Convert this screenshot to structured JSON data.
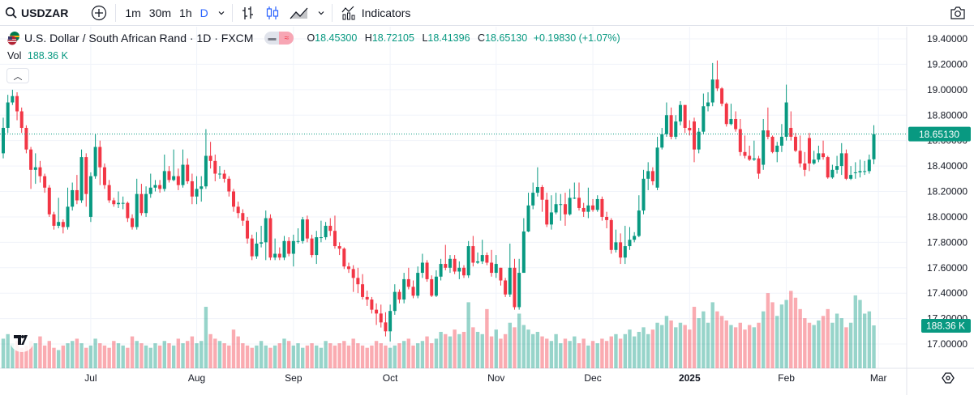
{
  "toolbar": {
    "symbol": "USDZAR",
    "intervals": [
      "1m",
      "30m",
      "1h",
      "D"
    ],
    "active_interval": "D",
    "indicators_label": "Indicators"
  },
  "legend": {
    "title": "U.S. Dollar / South African Rand · 1D · FXCM",
    "open_label": "O",
    "open": "18.45300",
    "high_label": "H",
    "high": "18.72105",
    "low_label": "L",
    "low": "18.41396",
    "close_label": "C",
    "close": "18.65130",
    "change": "+0.19830 (+1.07%)",
    "vol_label": "Vol",
    "vol": "188.36 K"
  },
  "colors": {
    "up": "#089981",
    "down": "#F23645",
    "accent": "#2962FF"
  },
  "price_axis": {
    "ticks": [
      "19.40000",
      "19.20000",
      "19.00000",
      "18.80000",
      "18.60000",
      "18.40000",
      "18.20000",
      "18.00000",
      "17.80000",
      "17.60000",
      "17.40000",
      "17.20000",
      "17.00000"
    ],
    "last_price_label": "18.65130",
    "last_volume_label": "188.36 K"
  },
  "time_axis": [
    {
      "label": "Jul",
      "index": 19
    },
    {
      "label": "Aug",
      "index": 42
    },
    {
      "label": "Sep",
      "index": 63
    },
    {
      "label": "Oct",
      "index": 84
    },
    {
      "label": "Nov",
      "index": 107
    },
    {
      "label": "Dec",
      "index": 128
    },
    {
      "label": "2025",
      "index": 149,
      "bold": true
    },
    {
      "label": "Feb",
      "index": 170
    },
    {
      "label": "Mar",
      "index": 190
    }
  ],
  "chart_data": {
    "type": "candlestick",
    "symbol": "USDZAR",
    "interval": "1D",
    "ylim": [
      16.8,
      19.5
    ],
    "last_price": 18.6513,
    "volume_unit": "K",
    "candles_ohlcv": [
      [
        18.5,
        18.78,
        18.46,
        18.7,
        130
      ],
      [
        18.7,
        18.96,
        18.66,
        18.9,
        150
      ],
      [
        18.9,
        19.0,
        18.88,
        18.95,
        110
      ],
      [
        18.95,
        18.98,
        18.76,
        18.83,
        120
      ],
      [
        18.83,
        18.86,
        18.66,
        18.7,
        90
      ],
      [
        18.7,
        18.72,
        18.5,
        18.53,
        100
      ],
      [
        18.53,
        18.55,
        18.22,
        18.37,
        120
      ],
      [
        18.37,
        18.5,
        18.26,
        18.39,
        110
      ],
      [
        18.39,
        18.44,
        18.27,
        18.32,
        140
      ],
      [
        18.32,
        18.34,
        18.19,
        18.23,
        100
      ],
      [
        18.23,
        18.25,
        18.0,
        18.02,
        120
      ],
      [
        18.02,
        18.04,
        17.9,
        17.93,
        90
      ],
      [
        17.93,
        18.15,
        17.91,
        17.96,
        80
      ],
      [
        17.96,
        17.98,
        17.87,
        17.92,
        100
      ],
      [
        17.92,
        18.23,
        17.9,
        18.08,
        110
      ],
      [
        18.08,
        18.27,
        18.05,
        18.21,
        120
      ],
      [
        18.21,
        18.33,
        18.1,
        18.13,
        130
      ],
      [
        18.13,
        18.53,
        18.11,
        18.47,
        110
      ],
      [
        18.47,
        18.5,
        18.08,
        18.18,
        90
      ],
      [
        18.0,
        18.35,
        17.96,
        18.32,
        100
      ],
      [
        18.32,
        18.65,
        18.3,
        18.55,
        130
      ],
      [
        18.55,
        18.6,
        18.25,
        18.39,
        110
      ],
      [
        18.39,
        18.42,
        18.22,
        18.25,
        100
      ],
      [
        18.25,
        18.29,
        18.11,
        18.13,
        90
      ],
      [
        18.13,
        18.15,
        18.08,
        18.1,
        120
      ],
      [
        18.1,
        18.2,
        18.07,
        18.11,
        110
      ],
      [
        18.11,
        18.16,
        18.06,
        18.11,
        100
      ],
      [
        18.11,
        18.12,
        17.96,
        17.99,
        90
      ],
      [
        17.99,
        18.02,
        17.9,
        17.92,
        140
      ],
      [
        17.92,
        18.3,
        17.9,
        18.18,
        120
      ],
      [
        18.18,
        18.26,
        18.01,
        18.03,
        110
      ],
      [
        18.03,
        18.24,
        18.0,
        18.18,
        100
      ],
      [
        18.18,
        18.34,
        18.15,
        18.23,
        90
      ],
      [
        18.23,
        18.29,
        18.2,
        18.25,
        110
      ],
      [
        18.25,
        18.29,
        18.19,
        18.22,
        100
      ],
      [
        18.22,
        18.49,
        18.2,
        18.36,
        120
      ],
      [
        18.36,
        18.4,
        18.27,
        18.29,
        110
      ],
      [
        18.29,
        18.53,
        18.28,
        18.32,
        100
      ],
      [
        18.32,
        18.38,
        18.21,
        18.25,
        130
      ],
      [
        18.25,
        18.53,
        18.23,
        18.41,
        110
      ],
      [
        18.41,
        18.46,
        18.26,
        18.28,
        120
      ],
      [
        18.28,
        18.34,
        18.1,
        18.16,
        140
      ],
      [
        18.16,
        18.32,
        18.1,
        18.22,
        110
      ],
      [
        18.22,
        18.32,
        18.12,
        18.24,
        120
      ],
      [
        18.24,
        18.69,
        18.22,
        18.48,
        270
      ],
      [
        18.48,
        18.59,
        18.38,
        18.44,
        150
      ],
      [
        18.44,
        18.49,
        18.28,
        18.34,
        130
      ],
      [
        18.34,
        18.4,
        18.3,
        18.34,
        120
      ],
      [
        18.34,
        18.37,
        18.27,
        18.3,
        110
      ],
      [
        18.3,
        18.32,
        18.16,
        18.2,
        100
      ],
      [
        18.2,
        18.22,
        18.04,
        18.08,
        170
      ],
      [
        18.08,
        18.12,
        17.99,
        18.03,
        140
      ],
      [
        18.03,
        18.06,
        17.93,
        17.97,
        110
      ],
      [
        17.97,
        18.0,
        17.79,
        17.83,
        100
      ],
      [
        17.83,
        17.86,
        17.66,
        17.69,
        90
      ],
      [
        17.69,
        17.88,
        17.67,
        17.79,
        100
      ],
      [
        17.79,
        17.93,
        17.76,
        17.8,
        120
      ],
      [
        17.8,
        18.05,
        17.66,
        17.99,
        100
      ],
      [
        17.99,
        18.02,
        17.66,
        17.68,
        90
      ],
      [
        17.68,
        17.83,
        17.66,
        17.71,
        100
      ],
      [
        17.71,
        17.76,
        17.66,
        17.68,
        110
      ],
      [
        17.68,
        17.85,
        17.66,
        17.81,
        130
      ],
      [
        17.81,
        17.84,
        17.69,
        17.71,
        120
      ],
      [
        17.71,
        17.86,
        17.61,
        17.81,
        100
      ],
      [
        17.81,
        17.91,
        17.79,
        17.81,
        110
      ],
      [
        17.81,
        18.0,
        17.79,
        17.98,
        90
      ],
      [
        17.98,
        18.01,
        17.8,
        17.83,
        100
      ],
      [
        17.83,
        17.86,
        17.68,
        17.7,
        110
      ],
      [
        17.7,
        17.89,
        17.63,
        17.84,
        100
      ],
      [
        17.84,
        17.97,
        17.8,
        17.84,
        90
      ],
      [
        17.84,
        17.96,
        17.82,
        17.93,
        120
      ],
      [
        17.93,
        17.99,
        17.85,
        17.89,
        110
      ],
      [
        17.89,
        18.01,
        17.75,
        17.77,
        100
      ],
      [
        17.77,
        17.8,
        17.7,
        17.75,
        110
      ],
      [
        17.75,
        17.76,
        17.59,
        17.61,
        120
      ],
      [
        17.61,
        17.64,
        17.56,
        17.59,
        100
      ],
      [
        17.59,
        17.62,
        17.41,
        17.52,
        130
      ],
      [
        17.52,
        17.6,
        17.4,
        17.47,
        110
      ],
      [
        17.47,
        17.55,
        17.35,
        17.37,
        100
      ],
      [
        17.37,
        17.42,
        17.3,
        17.35,
        90
      ],
      [
        17.35,
        17.37,
        17.24,
        17.27,
        100
      ],
      [
        17.27,
        17.32,
        17.15,
        17.24,
        120
      ],
      [
        17.24,
        17.31,
        17.13,
        17.17,
        110
      ],
      [
        17.17,
        17.25,
        17.06,
        17.1,
        100
      ],
      [
        17.1,
        17.31,
        17.02,
        17.26,
        90
      ],
      [
        17.26,
        17.47,
        17.23,
        17.41,
        100
      ],
      [
        17.41,
        17.43,
        17.32,
        17.35,
        110
      ],
      [
        17.35,
        17.56,
        17.32,
        17.51,
        120
      ],
      [
        17.51,
        17.6,
        17.43,
        17.45,
        130
      ],
      [
        17.45,
        17.5,
        17.36,
        17.38,
        100
      ],
      [
        17.38,
        17.61,
        17.36,
        17.56,
        110
      ],
      [
        17.56,
        17.71,
        17.52,
        17.64,
        120
      ],
      [
        17.64,
        17.66,
        17.49,
        17.51,
        140
      ],
      [
        17.51,
        17.54,
        17.37,
        17.38,
        110
      ],
      [
        17.38,
        17.58,
        17.37,
        17.53,
        130
      ],
      [
        17.53,
        17.67,
        17.5,
        17.63,
        160
      ],
      [
        17.63,
        17.78,
        17.58,
        17.6,
        150
      ],
      [
        17.6,
        17.7,
        17.56,
        17.67,
        140
      ],
      [
        17.67,
        17.7,
        17.55,
        17.57,
        170
      ],
      [
        17.57,
        17.65,
        17.51,
        17.6,
        150
      ],
      [
        17.6,
        17.62,
        17.52,
        17.54,
        160
      ],
      [
        17.54,
        17.81,
        17.52,
        17.77,
        290
      ],
      [
        17.77,
        17.85,
        17.61,
        17.64,
        180
      ],
      [
        17.64,
        17.72,
        17.63,
        17.65,
        160
      ],
      [
        17.65,
        17.82,
        17.63,
        17.7,
        150
      ],
      [
        17.7,
        17.72,
        17.62,
        17.64,
        260
      ],
      [
        17.64,
        17.74,
        17.53,
        17.56,
        140
      ],
      [
        17.56,
        17.7,
        17.52,
        17.63,
        170
      ],
      [
        17.6,
        17.6,
        17.46,
        17.5,
        130
      ],
      [
        17.5,
        17.52,
        17.37,
        17.39,
        150
      ],
      [
        17.39,
        17.79,
        17.37,
        17.6,
        200
      ],
      [
        17.6,
        17.67,
        17.27,
        17.29,
        180
      ],
      [
        17.29,
        17.67,
        17.27,
        17.56,
        240
      ],
      [
        17.56,
        17.99,
        17.57,
        17.885,
        190
      ],
      [
        17.885,
        18.19,
        17.88,
        18.09,
        170
      ],
      [
        18.09,
        18.27,
        18.06,
        18.19,
        150
      ],
      [
        18.19,
        18.39,
        18.16,
        18.235,
        160
      ],
      [
        18.235,
        18.25,
        18.04,
        18.135,
        140
      ],
      [
        18.135,
        18.19,
        17.92,
        17.94,
        130
      ],
      [
        17.94,
        18.17,
        17.9,
        18.035,
        120
      ],
      [
        18.035,
        18.19,
        18.02,
        18.1,
        150
      ],
      [
        18.1,
        18.18,
        17.97,
        18.1,
        110
      ],
      [
        18.1,
        18.19,
        17.93,
        18.02,
        130
      ],
      [
        18.02,
        18.22,
        18.01,
        18.15,
        120
      ],
      [
        18.15,
        18.27,
        18.14,
        18.15,
        140
      ],
      [
        18.15,
        18.27,
        18.05,
        18.07,
        110
      ],
      [
        18.07,
        18.11,
        18.0,
        18.04,
        130
      ],
      [
        18.04,
        18.23,
        17.99,
        18.09,
        100
      ],
      [
        18.09,
        18.14,
        18.04,
        18.055,
        120
      ],
      [
        18.055,
        18.17,
        18.04,
        18.14,
        110
      ],
      [
        18.14,
        18.16,
        17.97,
        18.0,
        130
      ],
      [
        18.0,
        18.04,
        17.91,
        17.975,
        120
      ],
      [
        17.975,
        17.99,
        17.71,
        17.74,
        140
      ],
      [
        17.74,
        17.9,
        17.72,
        17.8,
        150
      ],
      [
        17.8,
        17.87,
        17.63,
        17.68,
        130
      ],
      [
        17.68,
        17.93,
        17.63,
        17.77,
        150
      ],
      [
        17.77,
        17.92,
        17.74,
        17.82,
        170
      ],
      [
        17.82,
        17.88,
        17.8,
        17.85,
        140
      ],
      [
        17.85,
        18.17,
        17.84,
        18.05,
        160
      ],
      [
        18.05,
        18.37,
        18.02,
        18.3,
        180
      ],
      [
        18.3,
        18.43,
        18.21,
        18.36,
        150
      ],
      [
        18.36,
        18.39,
        18.25,
        18.28,
        170
      ],
      [
        18.23,
        18.63,
        18.21,
        18.545,
        200
      ],
      [
        18.545,
        18.7,
        18.53,
        18.65,
        190
      ],
      [
        18.65,
        18.9,
        18.63,
        18.8,
        230
      ],
      [
        18.8,
        18.86,
        18.61,
        18.63,
        210
      ],
      [
        18.63,
        18.8,
        18.61,
        18.75,
        180
      ],
      [
        18.75,
        18.91,
        18.72,
        18.88,
        200
      ],
      [
        18.88,
        18.88,
        18.66,
        18.7,
        190
      ],
      [
        18.7,
        18.76,
        18.64,
        18.68,
        170
      ],
      [
        18.75,
        18.78,
        18.43,
        18.53,
        270
      ],
      [
        18.53,
        18.7,
        18.5,
        18.67,
        220
      ],
      [
        18.67,
        18.97,
        18.65,
        18.87,
        250
      ],
      [
        18.87,
        18.98,
        18.83,
        18.9,
        200
      ],
      [
        18.9,
        19.21,
        18.87,
        19.08,
        290
      ],
      [
        19.08,
        19.23,
        18.99,
        19.01,
        250
      ],
      [
        19.01,
        19.02,
        18.87,
        18.89,
        230
      ],
      [
        18.89,
        18.9,
        18.71,
        18.73,
        210
      ],
      [
        18.73,
        18.89,
        18.72,
        18.77,
        190
      ],
      [
        18.77,
        18.83,
        18.67,
        18.69,
        180
      ],
      [
        18.69,
        18.77,
        18.48,
        18.51,
        200
      ],
      [
        18.51,
        18.64,
        18.46,
        18.48,
        170
      ],
      [
        18.48,
        18.56,
        18.44,
        18.45,
        190
      ],
      [
        18.45,
        18.6,
        18.44,
        18.46,
        180
      ],
      [
        18.46,
        18.48,
        18.3,
        18.34,
        200
      ],
      [
        18.41,
        18.77,
        18.37,
        18.68,
        250
      ],
      [
        18.68,
        18.86,
        18.61,
        18.63,
        330
      ],
      [
        18.63,
        18.64,
        18.5,
        18.51,
        290
      ],
      [
        18.51,
        18.59,
        18.43,
        18.56,
        230
      ],
      [
        18.56,
        18.73,
        18.51,
        18.63,
        280
      ],
      [
        18.63,
        19.04,
        18.6,
        18.9,
        300
      ],
      [
        18.7,
        18.83,
        18.6,
        18.63,
        340
      ],
      [
        18.63,
        18.66,
        18.51,
        18.52,
        310
      ],
      [
        18.52,
        18.64,
        18.39,
        18.42,
        260
      ],
      [
        18.42,
        18.51,
        18.32,
        18.37,
        220
      ],
      [
        18.62,
        18.66,
        18.36,
        18.42,
        200
      ],
      [
        18.42,
        18.52,
        18.41,
        18.45,
        190
      ],
      [
        18.45,
        18.56,
        18.43,
        18.5,
        210
      ],
      [
        18.5,
        18.6,
        18.45,
        18.47,
        230
      ],
      [
        18.47,
        18.48,
        18.3,
        18.31,
        260
      ],
      [
        18.31,
        18.41,
        18.3,
        18.37,
        200
      ],
      [
        18.37,
        18.48,
        18.34,
        18.4,
        240
      ],
      [
        18.4,
        18.58,
        18.33,
        18.5,
        220
      ],
      [
        18.5,
        18.53,
        18.29,
        18.3,
        180
      ],
      [
        18.3,
        18.4,
        18.29,
        18.33,
        200
      ],
      [
        18.35,
        18.43,
        18.3,
        18.35,
        320
      ],
      [
        18.35,
        18.45,
        18.31,
        18.36,
        300
      ],
      [
        18.36,
        18.44,
        18.33,
        18.36,
        240
      ],
      [
        18.36,
        18.49,
        18.34,
        18.45,
        250
      ],
      [
        18.453,
        18.72105,
        18.41396,
        18.6513,
        188.36
      ]
    ]
  }
}
